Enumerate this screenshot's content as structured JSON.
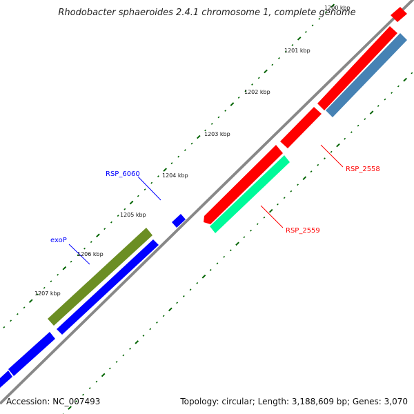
{
  "title": "Rhodobacter sphaeroides 2.4.1 chromosome 1, complete genome",
  "ticks": [
    {
      "label": "1200 kbp",
      "faded": true
    },
    {
      "label": "1201 kbp"
    },
    {
      "label": "1202 kbp"
    },
    {
      "label": "1203 kbp"
    },
    {
      "label": "1204 kbp"
    },
    {
      "label": "1205 kbp"
    },
    {
      "label": "1206 kbp"
    },
    {
      "label": "1207 kbp"
    }
  ],
  "gene_labels": {
    "rsp_6060": "RSP_6060",
    "exop": "exoP",
    "rsp_2558": "RSP_2558",
    "rsp_2559": "RSP_2559"
  },
  "colors": {
    "backbone": "#888888",
    "forward_gene": "#ff0000",
    "reverse_gene": "#0000ff",
    "exop_gene": "#6b8e23",
    "rsp_2558_gene": "#4682b4",
    "rsp_2559_gene": "#00fa9a",
    "tick_color": "#006400",
    "label_blue": "#0000ff",
    "label_red": "#ff0000"
  },
  "footer": {
    "accession": "Accession: NC_007493",
    "summary": "Topology: circular; Length: 3,188,609 bp; Genes: 3,070"
  }
}
